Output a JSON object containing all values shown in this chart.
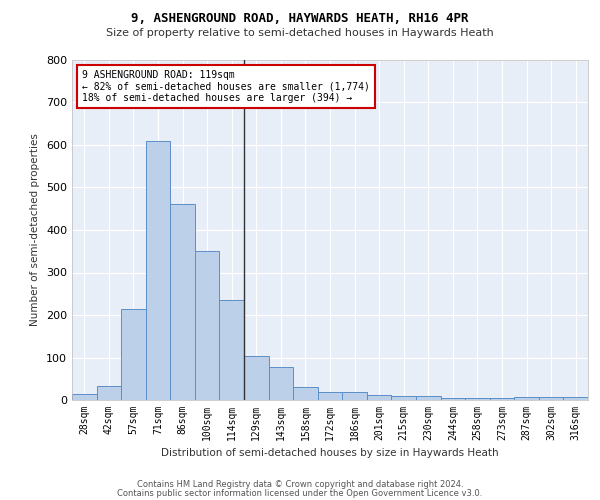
{
  "title1": "9, ASHENGROUND ROAD, HAYWARDS HEATH, RH16 4PR",
  "title2": "Size of property relative to semi-detached houses in Haywards Heath",
  "xlabel": "Distribution of semi-detached houses by size in Haywards Heath",
  "ylabel": "Number of semi-detached properties",
  "footer1": "Contains HM Land Registry data © Crown copyright and database right 2024.",
  "footer2": "Contains public sector information licensed under the Open Government Licence v3.0.",
  "categories": [
    "28sqm",
    "42sqm",
    "57sqm",
    "71sqm",
    "86sqm",
    "100sqm",
    "114sqm",
    "129sqm",
    "143sqm",
    "158sqm",
    "172sqm",
    "186sqm",
    "201sqm",
    "215sqm",
    "230sqm",
    "244sqm",
    "258sqm",
    "273sqm",
    "287sqm",
    "302sqm",
    "316sqm"
  ],
  "values": [
    15,
    32,
    215,
    610,
    460,
    350,
    235,
    103,
    78,
    30,
    20,
    20,
    12,
    10,
    10,
    5,
    5,
    5,
    8,
    8,
    8
  ],
  "bar_color": "#bdd0e9",
  "bar_edge_color": "#5b8fc9",
  "vline_x": 6.5,
  "vline_color": "#333333",
  "annotation_title": "9 ASHENGROUND ROAD: 119sqm",
  "annotation_line1": "← 82% of semi-detached houses are smaller (1,774)",
  "annotation_line2": "18% of semi-detached houses are larger (394) →",
  "annotation_box_color": "#ffffff",
  "annotation_box_edge": "#cc0000",
  "ylim": [
    0,
    800
  ],
  "yticks": [
    0,
    100,
    200,
    300,
    400,
    500,
    600,
    700,
    800
  ],
  "background_color": "#e8eef8",
  "grid_color": "#ffffff"
}
